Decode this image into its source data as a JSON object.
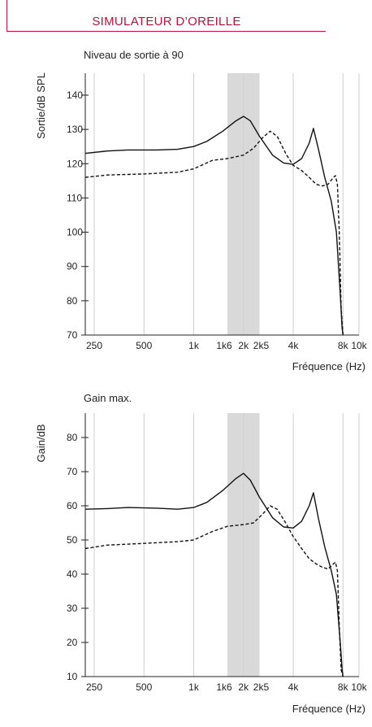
{
  "header": {
    "title": "SIMULATEUR D’OREILLE"
  },
  "chart_data": [
    {
      "type": "line",
      "title": "Niveau de sortie à 90",
      "xlabel": "Fréquence (Hz)",
      "ylabel": "Sortie/dB SPL",
      "x_scale": "log",
      "xlim": [
        200,
        10000
      ],
      "ylim": [
        70,
        147
      ],
      "x_ticks": [
        250,
        500,
        1000,
        1600,
        2000,
        2500,
        4000,
        8000,
        10000
      ],
      "x_tick_labels": [
        "250",
        "500",
        "1k",
        "1k6",
        "2k",
        "2k5",
        "4k",
        "8k",
        "10k"
      ],
      "y_ticks": [
        70,
        80,
        90,
        100,
        110,
        120,
        130,
        140
      ],
      "shaded_band": [
        1600,
        2500
      ],
      "grid": "vertical",
      "series": [
        {
          "style": "solid",
          "x": [
            200,
            300,
            400,
            600,
            800,
            1000,
            1200,
            1500,
            1800,
            2000,
            2200,
            2500,
            3000,
            3500,
            4000,
            4500,
            5000,
            5300,
            5700,
            6200,
            6800,
            7300,
            7700,
            7900,
            8000
          ],
          "y": [
            123,
            123.7,
            124,
            124,
            124.2,
            125,
            126.5,
            129.5,
            132.5,
            133.8,
            132.5,
            128,
            122.5,
            120.2,
            119.8,
            121.5,
            126,
            130.3,
            124,
            116,
            109,
            100,
            82,
            72,
            70
          ]
        },
        {
          "style": "dashed",
          "x": [
            200,
            300,
            500,
            800,
            1000,
            1300,
            1600,
            2000,
            2300,
            2600,
            2900,
            3200,
            3600,
            4000,
            4500,
            5000,
            5500,
            6000,
            6500,
            7000,
            7200,
            7400,
            7600,
            7800,
            8000
          ],
          "y": [
            116,
            116.7,
            117,
            117.5,
            118.5,
            121,
            121.5,
            122.5,
            124.5,
            127.5,
            129.5,
            128,
            123,
            119.5,
            118,
            116,
            114,
            113.5,
            114,
            116,
            116.5,
            114,
            100,
            78,
            70
          ]
        }
      ]
    },
    {
      "type": "line",
      "title": "Gain max.",
      "xlabel": "Fréquence (Hz)",
      "ylabel": "Gain/dB",
      "x_scale": "log",
      "xlim": [
        200,
        10000
      ],
      "ylim": [
        10,
        87
      ],
      "x_ticks": [
        250,
        500,
        1000,
        1600,
        2000,
        2500,
        4000,
        8000,
        10000
      ],
      "x_tick_labels": [
        "250",
        "500",
        "1k",
        "1k6",
        "2k",
        "2k5",
        "4k",
        "8k",
        "10k"
      ],
      "y_ticks": [
        10,
        20,
        30,
        40,
        50,
        60,
        70,
        80
      ],
      "shaded_band": [
        1600,
        2500
      ],
      "grid": "vertical",
      "series": [
        {
          "style": "solid",
          "x": [
            200,
            300,
            400,
            600,
            800,
            1000,
            1200,
            1500,
            1800,
            2000,
            2200,
            2500,
            3000,
            3500,
            4000,
            4500,
            5000,
            5300,
            5700,
            6200,
            6800,
            7300,
            7700,
            7900,
            8000
          ],
          "y": [
            59,
            59.2,
            59.5,
            59.3,
            59,
            59.5,
            61,
            64.5,
            68,
            69.5,
            67.5,
            62.5,
            56.5,
            53.8,
            53.5,
            55.5,
            60,
            63.8,
            56,
            48,
            41,
            34,
            20,
            12,
            10
          ]
        },
        {
          "style": "dashed",
          "x": [
            200,
            300,
            500,
            800,
            1000,
            1300,
            1600,
            2000,
            2300,
            2600,
            2900,
            3200,
            3600,
            4000,
            4500,
            5000,
            5500,
            6000,
            6500,
            7000,
            7200,
            7400,
            7600,
            7800,
            8000
          ],
          "y": [
            47.5,
            48.5,
            49,
            49.5,
            50,
            52.5,
            54,
            54.5,
            55,
            57.5,
            60,
            59,
            55,
            51,
            47.5,
            44.5,
            43,
            42,
            41.5,
            43,
            43.5,
            41,
            25,
            12,
            10
          ]
        }
      ]
    }
  ]
}
